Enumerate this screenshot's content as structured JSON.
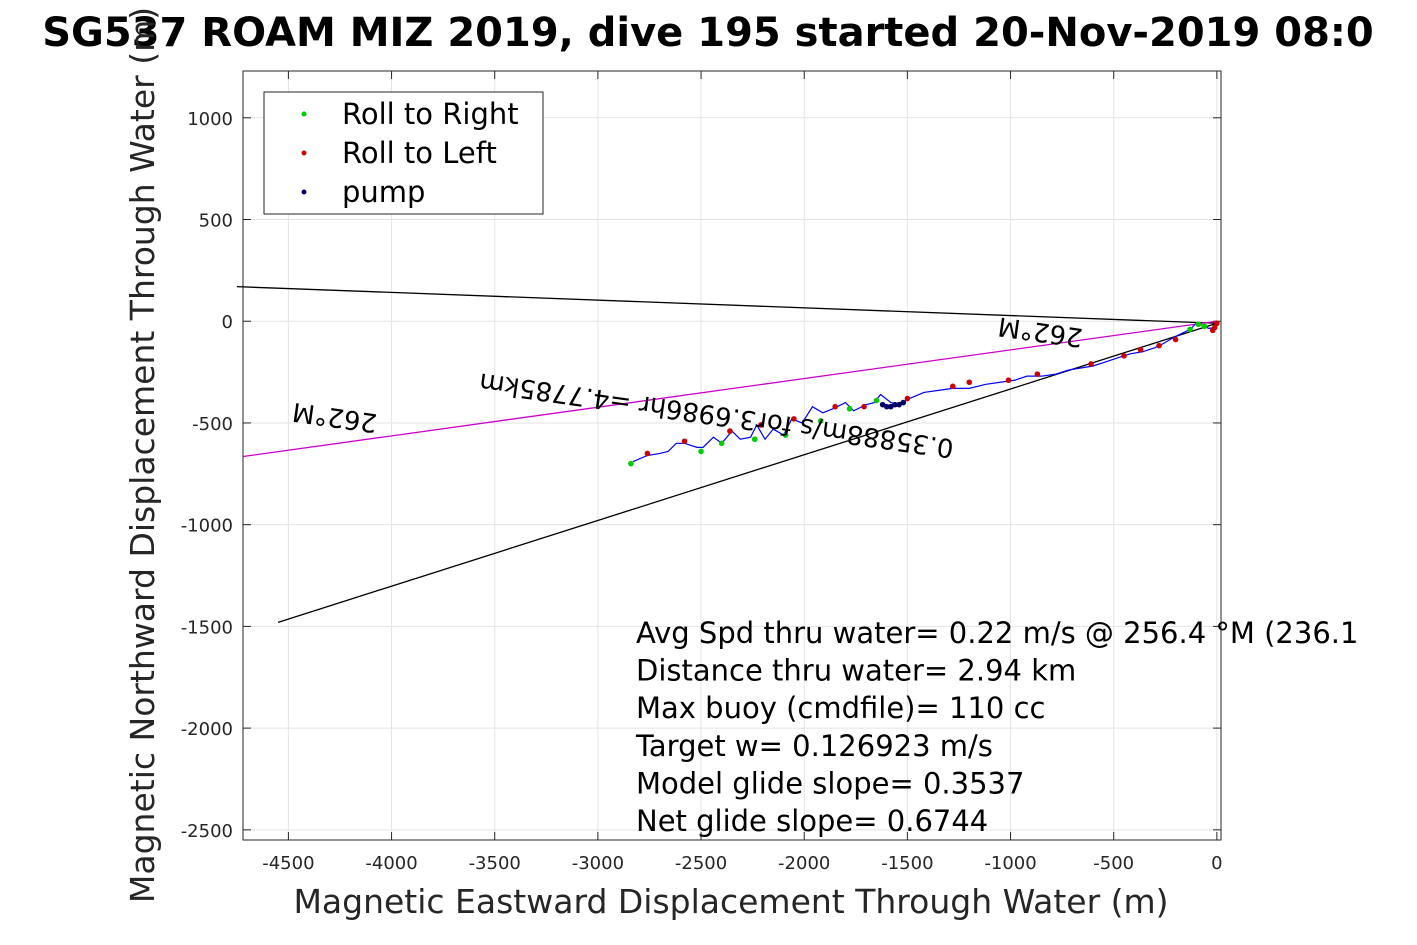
{
  "chart_data": {
    "type": "line",
    "title": "SG537 ROAM MIZ 2019, dive 195 started 20-Nov-2019 08:0",
    "xlabel": "Magnetic Eastward Displacement Through Water (m)",
    "ylabel": "Magnetic Northward Displacement Through Water (m)",
    "xlim": [
      -4720,
      20
    ],
    "ylim": [
      -2550,
      1230
    ],
    "xticks": [
      -4500,
      -4000,
      -3500,
      -3000,
      -2500,
      -2000,
      -1500,
      -1000,
      -500,
      0
    ],
    "yticks": [
      1000,
      500,
      0,
      -500,
      -1000,
      -1500,
      -2000,
      -2500
    ],
    "grid": true,
    "legend_position": "top-left",
    "legend": [
      "Roll to Right",
      "Roll to Left",
      "pump"
    ],
    "series": [
      {
        "name": "track",
        "color": "#0000ff",
        "x": [
          0,
          -40,
          -70,
          -100,
          -130,
          -170,
          -210,
          -260,
          -300,
          -360,
          -420,
          -480,
          -540,
          -600,
          -660,
          -720,
          -780,
          -850,
          -920,
          -980,
          -1050,
          -1120,
          -1200,
          -1280,
          -1350,
          -1420,
          -1490,
          -1540,
          -1580,
          -1630,
          -1660,
          -1700,
          -1760,
          -1800,
          -1860,
          -1910,
          -1960,
          -2010,
          -2060,
          -2100,
          -2150,
          -2190,
          -2230,
          -2260,
          -2310,
          -2350,
          -2400,
          -2440,
          -2490,
          -2520,
          -2580,
          -2620,
          -2660,
          -2700,
          -2760,
          -2830
        ],
        "y": [
          -30,
          -35,
          -20,
          -10,
          -40,
          -60,
          -80,
          -110,
          -130,
          -150,
          -160,
          -180,
          -200,
          -220,
          -230,
          -240,
          -260,
          -270,
          -270,
          -290,
          -300,
          -310,
          -330,
          -330,
          -340,
          -350,
          -380,
          -410,
          -400,
          -360,
          -400,
          -410,
          -440,
          -400,
          -430,
          -450,
          -420,
          -500,
          -480,
          -560,
          -530,
          -580,
          -510,
          -570,
          -580,
          -540,
          -600,
          -570,
          -620,
          -620,
          -600,
          -600,
          -640,
          -650,
          -660,
          -690
        ]
      },
      {
        "name": "Roll to Right",
        "color": "#00cc00",
        "x": [
          -60,
          -90,
          -130,
          -1650,
          -1780,
          -1920,
          -2090,
          -2240,
          -2400,
          -2500,
          -2840
        ],
        "y": [
          -25,
          -15,
          -40,
          -390,
          -430,
          -490,
          -560,
          -580,
          -600,
          -640,
          -700
        ]
      },
      {
        "name": "Roll to Left",
        "color": "#cc0000",
        "x": [
          0,
          -10,
          -20,
          -200,
          -280,
          -370,
          -450,
          -610,
          -870,
          -1010,
          -1200,
          -1280,
          -1500,
          -1710,
          -1850,
          -2050,
          -2210,
          -2360,
          -2580,
          -2760
        ],
        "y": [
          -10,
          -30,
          -45,
          -90,
          -120,
          -140,
          -170,
          -210,
          -260,
          -290,
          -300,
          -320,
          -380,
          -420,
          -420,
          -480,
          -510,
          -540,
          -590,
          -650
        ]
      },
      {
        "name": "pump",
        "color": "#000066",
        "x": [
          -1520,
          -1540,
          -1560,
          -1580,
          -1600,
          -1620
        ],
        "y": [
          -400,
          -410,
          -410,
          -420,
          -420,
          -410
        ]
      }
    ],
    "reference_lines": [
      {
        "name": "upper heading line",
        "color": "#000000",
        "x": [
          -4750,
          0
        ],
        "y": [
          170,
          -10
        ]
      },
      {
        "name": "current direction line",
        "color": "#cc00cc",
        "x": [
          -4720,
          0
        ],
        "y": [
          -665,
          0
        ]
      },
      {
        "name": "lower heading line",
        "color": "#000000",
        "x": [
          -4550,
          0
        ],
        "y": [
          -1480,
          -10
        ]
      }
    ],
    "plot_labels": [
      {
        "text": "262°M",
        "x": -4270,
        "y": -430,
        "rotated_upside_down": true
      },
      {
        "text": "0.35888m/s for3.6986hr =4.7785km",
        "x": -2420,
        "y": -420,
        "rotated_upside_down": true
      },
      {
        "text": "262°M",
        "x": -850,
        "y": -10,
        "rotated_upside_down": true
      }
    ],
    "annotations": [
      "Avg Spd thru water=  0.22 m/s @ 256.4 °M (236.1",
      "Distance thru water=  2.94 km",
      "Max buoy (cmdfile)= 110 cc",
      "Target w= 0.126923 m/s",
      "Model glide slope= 0.3537",
      "Net glide slope= 0.6744"
    ]
  }
}
